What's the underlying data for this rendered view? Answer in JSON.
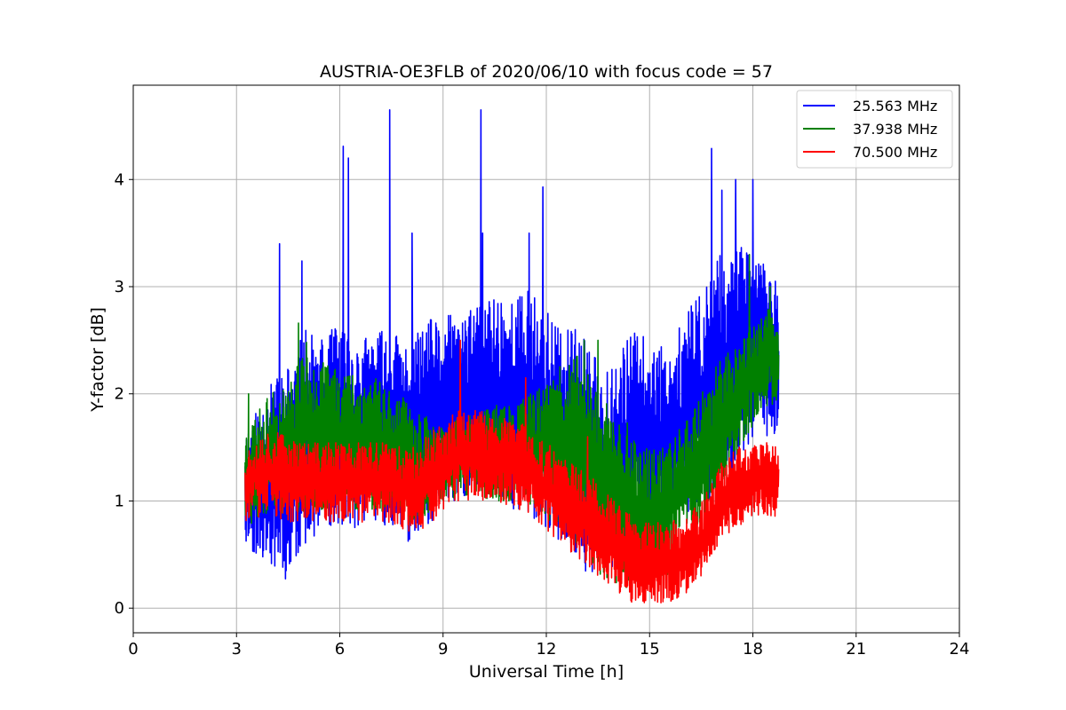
{
  "chart_data": {
    "type": "line",
    "title": "AUSTRIA-OE3FLB of 2020/06/10 with focus code = 57",
    "xlabel": "Universal Time [h]",
    "ylabel": "Y-factor [dB]",
    "xlim": [
      0,
      24
    ],
    "ylim": [
      -0.23,
      4.88
    ],
    "xticks": [
      0,
      3,
      6,
      9,
      12,
      15,
      18,
      21,
      24
    ],
    "yticks": [
      0,
      1,
      2,
      3,
      4
    ],
    "grid": true,
    "legend_position": "top-right",
    "x_start": 3.25,
    "x_end": 18.75,
    "series": [
      {
        "name": "25.563 MHz",
        "color": "#0000ff",
        "envelope_x": [
          3.25,
          3.5,
          4.0,
          4.5,
          5.0,
          5.5,
          6.0,
          6.5,
          7.0,
          7.5,
          8.0,
          8.5,
          9.0,
          9.5,
          10.0,
          10.5,
          11.0,
          11.5,
          12.0,
          12.5,
          13.0,
          13.5,
          14.0,
          14.5,
          15.0,
          15.5,
          16.0,
          16.5,
          17.0,
          17.5,
          18.0,
          18.5,
          18.75
        ],
        "upper": [
          1.7,
          1.8,
          2.1,
          2.3,
          2.6,
          2.5,
          2.7,
          2.5,
          2.6,
          2.6,
          2.5,
          2.7,
          2.7,
          2.8,
          2.8,
          3.0,
          2.9,
          3.0,
          2.8,
          2.6,
          2.6,
          2.3,
          2.4,
          2.6,
          2.5,
          2.5,
          2.7,
          3.0,
          3.3,
          3.4,
          3.3,
          3.2,
          3.0
        ],
        "lower": [
          0.6,
          0.5,
          0.4,
          0.25,
          0.6,
          0.7,
          0.75,
          0.75,
          0.8,
          0.75,
          0.6,
          0.7,
          0.9,
          1.0,
          1.0,
          0.95,
          0.9,
          0.85,
          0.7,
          0.6,
          0.4,
          0.2,
          0.3,
          0.5,
          0.6,
          0.7,
          0.8,
          0.9,
          1.0,
          1.3,
          1.6,
          1.6,
          1.6
        ],
        "spikes": [
          [
            4.25,
            3.4
          ],
          [
            4.9,
            3.24
          ],
          [
            6.1,
            4.31
          ],
          [
            6.25,
            4.2
          ],
          [
            7.45,
            4.65
          ],
          [
            8.1,
            3.5
          ],
          [
            10.1,
            4.65
          ],
          [
            10.15,
            3.5
          ],
          [
            11.5,
            3.5
          ],
          [
            11.9,
            3.93
          ],
          [
            16.8,
            4.29
          ],
          [
            17.1,
            3.9
          ],
          [
            17.5,
            4.0
          ],
          [
            18.0,
            4.0
          ]
        ],
        "seed": 11
      },
      {
        "name": "37.938 MHz",
        "color": "#008000",
        "envelope_x": [
          3.25,
          3.5,
          4.0,
          4.5,
          5.0,
          5.5,
          6.0,
          6.5,
          7.0,
          7.5,
          8.0,
          8.5,
          9.0,
          9.5,
          10.0,
          10.5,
          11.0,
          11.5,
          12.0,
          12.5,
          13.0,
          13.5,
          14.0,
          14.5,
          15.0,
          15.5,
          16.0,
          16.5,
          17.0,
          17.5,
          18.0,
          18.5,
          18.75
        ],
        "upper": [
          1.7,
          1.8,
          2.0,
          2.1,
          2.5,
          2.3,
          2.3,
          2.2,
          2.2,
          2.1,
          1.9,
          1.8,
          1.7,
          1.8,
          1.8,
          1.9,
          1.9,
          2.0,
          2.1,
          2.3,
          2.4,
          2.1,
          1.9,
          1.7,
          1.5,
          1.5,
          1.8,
          2.0,
          2.3,
          2.5,
          2.7,
          2.8,
          2.6
        ],
        "lower": [
          0.7,
          0.8,
          0.9,
          0.85,
          0.9,
          0.9,
          0.95,
          0.9,
          0.9,
          0.9,
          0.8,
          0.85,
          1.0,
          1.05,
          1.05,
          1.0,
          1.0,
          0.95,
          0.85,
          0.7,
          0.5,
          0.3,
          0.2,
          0.15,
          0.2,
          0.3,
          0.6,
          0.8,
          1.0,
          1.4,
          1.7,
          1.9,
          1.9
        ],
        "spikes": [
          [
            3.35,
            2.0
          ],
          [
            4.8,
            2.66
          ],
          [
            13.1,
            2.5
          ],
          [
            13.5,
            2.5
          ],
          [
            17.9,
            3.3
          ],
          [
            18.5,
            3.0
          ]
        ],
        "seed": 23
      },
      {
        "name": "70.500 MHz",
        "color": "#ff0000",
        "envelope_x": [
          3.25,
          3.5,
          4.0,
          4.5,
          5.0,
          5.5,
          6.0,
          6.5,
          7.0,
          7.5,
          8.0,
          8.5,
          9.0,
          9.5,
          10.0,
          10.5,
          11.0,
          11.5,
          12.0,
          12.5,
          13.0,
          13.5,
          14.0,
          14.5,
          15.0,
          15.5,
          16.0,
          16.5,
          17.0,
          17.5,
          18.0,
          18.5,
          18.75
        ],
        "upper": [
          1.5,
          1.6,
          1.7,
          1.6,
          1.55,
          1.55,
          1.55,
          1.55,
          1.55,
          1.55,
          1.5,
          1.6,
          1.75,
          1.85,
          1.85,
          1.8,
          1.75,
          1.7,
          1.55,
          1.4,
          1.3,
          1.2,
          1.0,
          0.85,
          0.8,
          0.8,
          0.85,
          1.0,
          1.35,
          1.5,
          1.55,
          1.55,
          1.5
        ],
        "lower": [
          0.8,
          0.85,
          0.85,
          0.8,
          0.8,
          0.8,
          0.8,
          0.8,
          0.8,
          0.8,
          0.7,
          0.75,
          0.9,
          1.0,
          1.0,
          1.0,
          0.95,
          0.85,
          0.7,
          0.55,
          0.45,
          0.3,
          0.15,
          0.05,
          0.05,
          0.05,
          0.1,
          0.3,
          0.6,
          0.75,
          0.85,
          0.85,
          0.85
        ],
        "spikes": [
          [
            9.5,
            2.5
          ],
          [
            11.4,
            2.15
          ],
          [
            13.2,
            1.6
          ]
        ],
        "seed": 37
      }
    ]
  }
}
